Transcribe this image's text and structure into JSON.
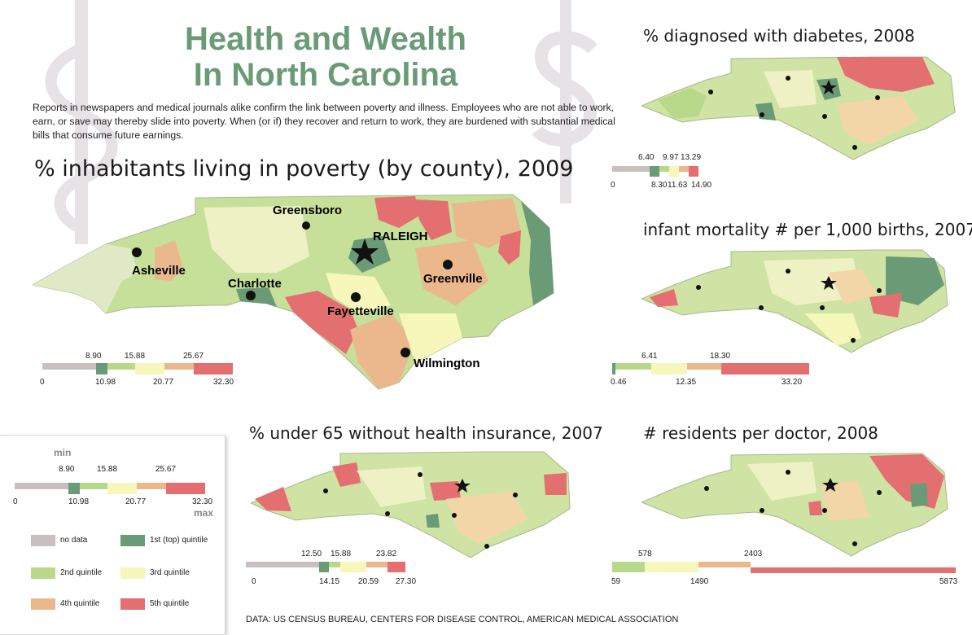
{
  "title": {
    "line1": "Health and Wealth",
    "line2": "In North Carolina"
  },
  "intro": "Reports in newspapers and medical journals alike confirm the link between poverty and illness. Employees who are not able to work, earn, or save may thereby slide into poverty. When (or if) they recover and return to work, they are burdened with substantial medical bills that consume future earnings.",
  "colors": {
    "no_data": "#c9bfbf",
    "q1": "#6a9a76",
    "q2": "#b8d98a",
    "q3": "#f7f7bc",
    "q4": "#ebb88e",
    "q5": "#e46f70",
    "title_green": "#6a9a76"
  },
  "main_map": {
    "title": "% inhabitants living in poverty (by county), 2009",
    "cities": {
      "greensboro": "Greensboro",
      "raleigh": "RALEIGH",
      "asheville": "Asheville",
      "charlotte": "Charlotte",
      "greenville": "Greenville",
      "fayetteville": "Fayetteville",
      "wilmington": "Wilmington"
    },
    "legend": {
      "v0": "0",
      "v1": "8.90",
      "v2": "10.98",
      "v3": "15.88",
      "v4": "20.77",
      "v5": "25.67",
      "v6": "32.30"
    }
  },
  "diabetes": {
    "title": "% diagnosed with diabetes, 2008",
    "legend": {
      "v0": "0",
      "v1": "6.40",
      "v2": "8.30",
      "v3": "9.97",
      "v4": "11.63",
      "v5": "13.29",
      "v6": "14.90"
    }
  },
  "infant": {
    "title": "infant mortality # per 1,000 births, 2007",
    "legend": {
      "v1": "0.46",
      "v2": "6.41",
      "v3": "12.35",
      "v4": "18.30",
      "v5": "33.20"
    }
  },
  "insurance": {
    "title": "% under 65 without health insurance, 2007",
    "legend": {
      "v0": "0",
      "v1": "12.50",
      "v2": "14.15",
      "v3": "15.88",
      "v4": "20.59",
      "v5": "23.82",
      "v6": "27.30"
    }
  },
  "doctors": {
    "title": "# residents per doctor, 2008",
    "legend": {
      "v1": "59",
      "v2": "578",
      "v3": "1490",
      "v4": "2403",
      "v5": "5873"
    }
  },
  "key": {
    "min": "min",
    "max": "max",
    "v0": "0",
    "v1": "8.90",
    "v2": "10.98",
    "v3": "15.88",
    "v4": "20.77",
    "v5": "25.67",
    "v6": "32.30",
    "no_data": "no data",
    "q1": "1st (top) quintile",
    "q2": "2nd quintile",
    "q3": "3rd quintile",
    "q4": "4th quintile",
    "q5": "5th quintile"
  },
  "source": "DATA: US CENSUS BUREAU, CENTERS FOR DISEASE CONTROL, AMERICAN MEDICAL ASSOCIATION"
}
